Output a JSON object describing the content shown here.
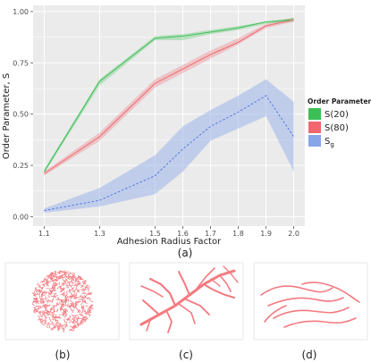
{
  "chart_data": {
    "type": "line",
    "xlabel": "Adhesion Radius Factor",
    "ylabel": "Order Parameter, S",
    "x": [
      1.1,
      1.3,
      1.5,
      1.6,
      1.7,
      1.8,
      1.9,
      2.0
    ],
    "x_ticks": [
      "1.1",
      "1.3",
      "1.5",
      "1.6",
      "1.7",
      "1.8",
      "1.9",
      "2.0"
    ],
    "ylim": [
      0,
      1
    ],
    "y_ticks": [
      "0.00",
      "0.25",
      "0.50",
      "0.75",
      "1.00"
    ],
    "grid": true,
    "legend_title": "Order Parameter",
    "legend_position": "right",
    "series": [
      {
        "name": "S(20)",
        "color": "#3dbf56",
        "style": "solid",
        "values": [
          0.22,
          0.66,
          0.87,
          0.88,
          0.9,
          0.92,
          0.95,
          0.96
        ],
        "lower": [
          0.21,
          0.64,
          0.86,
          0.86,
          0.89,
          0.91,
          0.94,
          0.95
        ],
        "upper": [
          0.23,
          0.67,
          0.88,
          0.89,
          0.91,
          0.93,
          0.95,
          0.97
        ]
      },
      {
        "name": "S(80)",
        "color": "#f0686f",
        "style": "solid",
        "values": [
          0.21,
          0.39,
          0.65,
          0.72,
          0.79,
          0.85,
          0.93,
          0.96
        ],
        "lower": [
          0.2,
          0.37,
          0.63,
          0.7,
          0.77,
          0.84,
          0.92,
          0.95
        ],
        "upper": [
          0.22,
          0.41,
          0.67,
          0.74,
          0.81,
          0.87,
          0.94,
          0.97
        ]
      },
      {
        "name": "Sg",
        "color": "#4a6ee0",
        "style": "dashed",
        "band_color": "#9db4ea",
        "values": [
          0.03,
          0.08,
          0.2,
          0.33,
          0.44,
          0.51,
          0.59,
          0.39
        ],
        "lower": [
          0.02,
          0.05,
          0.11,
          0.22,
          0.37,
          0.43,
          0.49,
          0.22
        ],
        "upper": [
          0.04,
          0.14,
          0.3,
          0.44,
          0.52,
          0.59,
          0.67,
          0.56
        ]
      }
    ]
  },
  "legend_entries": [
    {
      "label": "S(20)",
      "color": "#3dbf56"
    },
    {
      "label": "S(80)",
      "color": "#f0686f"
    },
    {
      "label": "S",
      "subscript": "g",
      "color": "#86a6e8"
    }
  ],
  "captions": {
    "a": "(a)",
    "b": "(b)",
    "c": "(c)",
    "d": "(d)"
  },
  "panel_colors": {
    "background": "#ebebeb",
    "grid": "#ffffff",
    "cells": "#f47a80"
  }
}
